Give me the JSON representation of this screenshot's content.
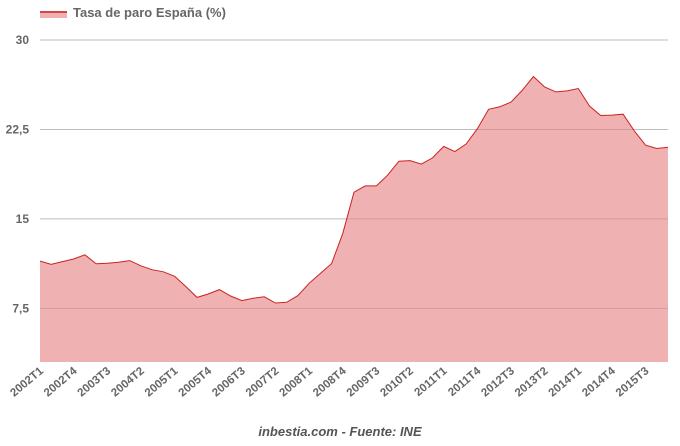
{
  "chart_data": {
    "type": "area",
    "legend": {
      "label": "Tasa de paro España (%)",
      "position": "top-left"
    },
    "colors": {
      "line": "#cc2222",
      "fill": "#efb1b1",
      "grid": "#d9d9d9"
    },
    "ylim": [
      3,
      30
    ],
    "yticks": [
      7.5,
      15,
      22.5,
      30
    ],
    "ytick_labels": [
      "7,5",
      "15",
      "22,5",
      "30"
    ],
    "grid": true,
    "x": [
      "2002T1",
      "2002T2",
      "2002T3",
      "2002T4",
      "2003T1",
      "2003T2",
      "2003T3",
      "2003T4",
      "2004T1",
      "2004T2",
      "2004T3",
      "2004T4",
      "2005T1",
      "2005T2",
      "2005T3",
      "2005T4",
      "2006T1",
      "2006T2",
      "2006T3",
      "2006T4",
      "2007T1",
      "2007T2",
      "2007T3",
      "2007T4",
      "2008T1",
      "2008T2",
      "2008T3",
      "2008T4",
      "2009T1",
      "2009T2",
      "2009T3",
      "2009T4",
      "2010T1",
      "2010T2",
      "2010T3",
      "2010T4",
      "2011T1",
      "2011T2",
      "2011T3",
      "2011T4",
      "2012T1",
      "2012T2",
      "2012T3",
      "2012T4",
      "2013T1",
      "2013T2",
      "2013T3",
      "2013T4",
      "2014T1",
      "2014T2",
      "2014T3",
      "2014T4",
      "2015T1",
      "2015T2",
      "2015T3",
      "2015T4",
      "2016T1"
    ],
    "xtick_labels": [
      "2002T1",
      "2002T4",
      "2003T3",
      "2004T2",
      "2005T1",
      "2005T4",
      "2006T3",
      "2007T2",
      "2008T1",
      "2008T4",
      "2009T3",
      "2010T2",
      "2011T1",
      "2011T4",
      "2012T3",
      "2013T2",
      "2014T1",
      "2014T4",
      "2015T3"
    ],
    "series": [
      {
        "name": "Tasa de paro España (%)",
        "values": [
          11.46,
          11.19,
          11.42,
          11.64,
          11.99,
          11.23,
          11.28,
          11.37,
          11.5,
          11.07,
          10.74,
          10.56,
          10.19,
          9.33,
          8.42,
          8.7,
          9.07,
          8.53,
          8.15,
          8.35,
          8.47,
          7.95,
          8.01,
          8.57,
          9.6,
          10.43,
          11.25,
          13.79,
          17.24,
          17.77,
          17.77,
          18.66,
          19.84,
          19.89,
          19.59,
          20.11,
          21.08,
          20.64,
          21.28,
          22.56,
          24.19,
          24.4,
          24.79,
          25.77,
          26.94,
          26.06,
          25.65,
          25.73,
          25.93,
          24.47,
          23.67,
          23.7,
          23.78,
          22.37,
          21.18,
          20.9,
          21.0
        ]
      }
    ]
  },
  "footer": "inbestia.com - Fuente: INE"
}
